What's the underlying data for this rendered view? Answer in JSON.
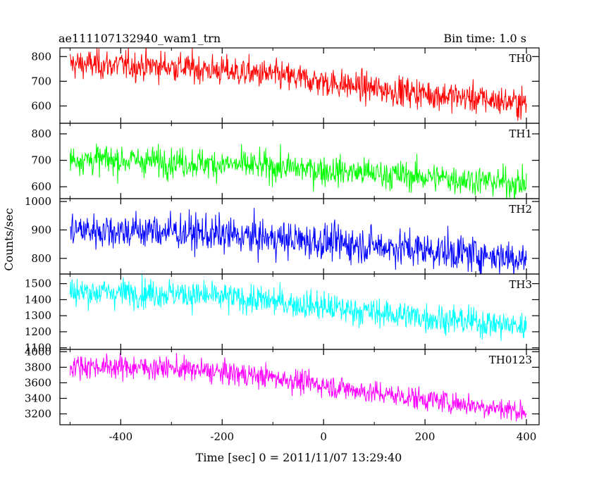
{
  "header": {
    "title": "ae111107132940_wam1_trn",
    "bin_time": "Bin time: 1.0 s"
  },
  "axes": {
    "ylabel": "Counts/sec",
    "xlabel": "Time [sec] 0 = 2011/11/07 13:29:40"
  },
  "chart_data": {
    "type": "line",
    "title": "ae111107132940_wam1_trn",
    "xlabel": "Time [sec] 0 = 2011/11/07 13:29:40",
    "ylabel": "Counts/sec",
    "xlim": [
      -520,
      425
    ],
    "x_range_data": [
      -500,
      400
    ],
    "x_ticks": [
      -400,
      -200,
      0,
      200,
      400
    ],
    "bin_time_s": 1.0,
    "panels": [
      {
        "name": "TH0",
        "color": "#ff0000",
        "ylim": [
          530,
          835
        ],
        "y_ticks": [
          600,
          700,
          800
        ],
        "trend": {
          "x": [
            -500,
            -300,
            -100,
            100,
            300,
            400
          ],
          "y": [
            770,
            760,
            725,
            670,
            630,
            610
          ]
        },
        "noise_sd": 30
      },
      {
        "name": "TH1",
        "color": "#00ff00",
        "ylim": [
          555,
          840
        ],
        "y_ticks": [
          600,
          700,
          800
        ],
        "trend": {
          "x": [
            -500,
            -300,
            -100,
            100,
            300,
            400
          ],
          "y": [
            705,
            695,
            675,
            650,
            625,
            610
          ]
        },
        "noise_sd": 28
      },
      {
        "name": "TH2",
        "color": "#0000ff",
        "ylim": [
          745,
          1010
        ],
        "y_ticks": [
          800,
          900,
          1000
        ],
        "trend": {
          "x": [
            -500,
            -300,
            -100,
            100,
            300,
            400
          ],
          "y": [
            900,
            895,
            870,
            845,
            815,
            800
          ]
        },
        "noise_sd": 32
      },
      {
        "name": "TH3",
        "color": "#00ffff",
        "ylim": [
          1090,
          1560
        ],
        "y_ticks": [
          1100,
          1200,
          1300,
          1400,
          1500
        ],
        "y_tick_labels": [
          "1100",
          "1200",
          "1300",
          "1400",
          "1500"
        ],
        "trend": {
          "x": [
            -500,
            -300,
            -100,
            100,
            300,
            400
          ],
          "y": [
            1450,
            1440,
            1390,
            1320,
            1260,
            1230
          ]
        },
        "noise_sd": 45
      },
      {
        "name": "TH0123",
        "color": "#ff00ff",
        "ylim": [
          3060,
          4030
        ],
        "y_ticks": [
          3200,
          3400,
          3600,
          3800,
          4000
        ],
        "trend": {
          "x": [
            -500,
            -300,
            -100,
            100,
            300,
            400
          ],
          "y": [
            3820,
            3790,
            3670,
            3470,
            3310,
            3230
          ]
        },
        "noise_sd": 75
      }
    ]
  }
}
